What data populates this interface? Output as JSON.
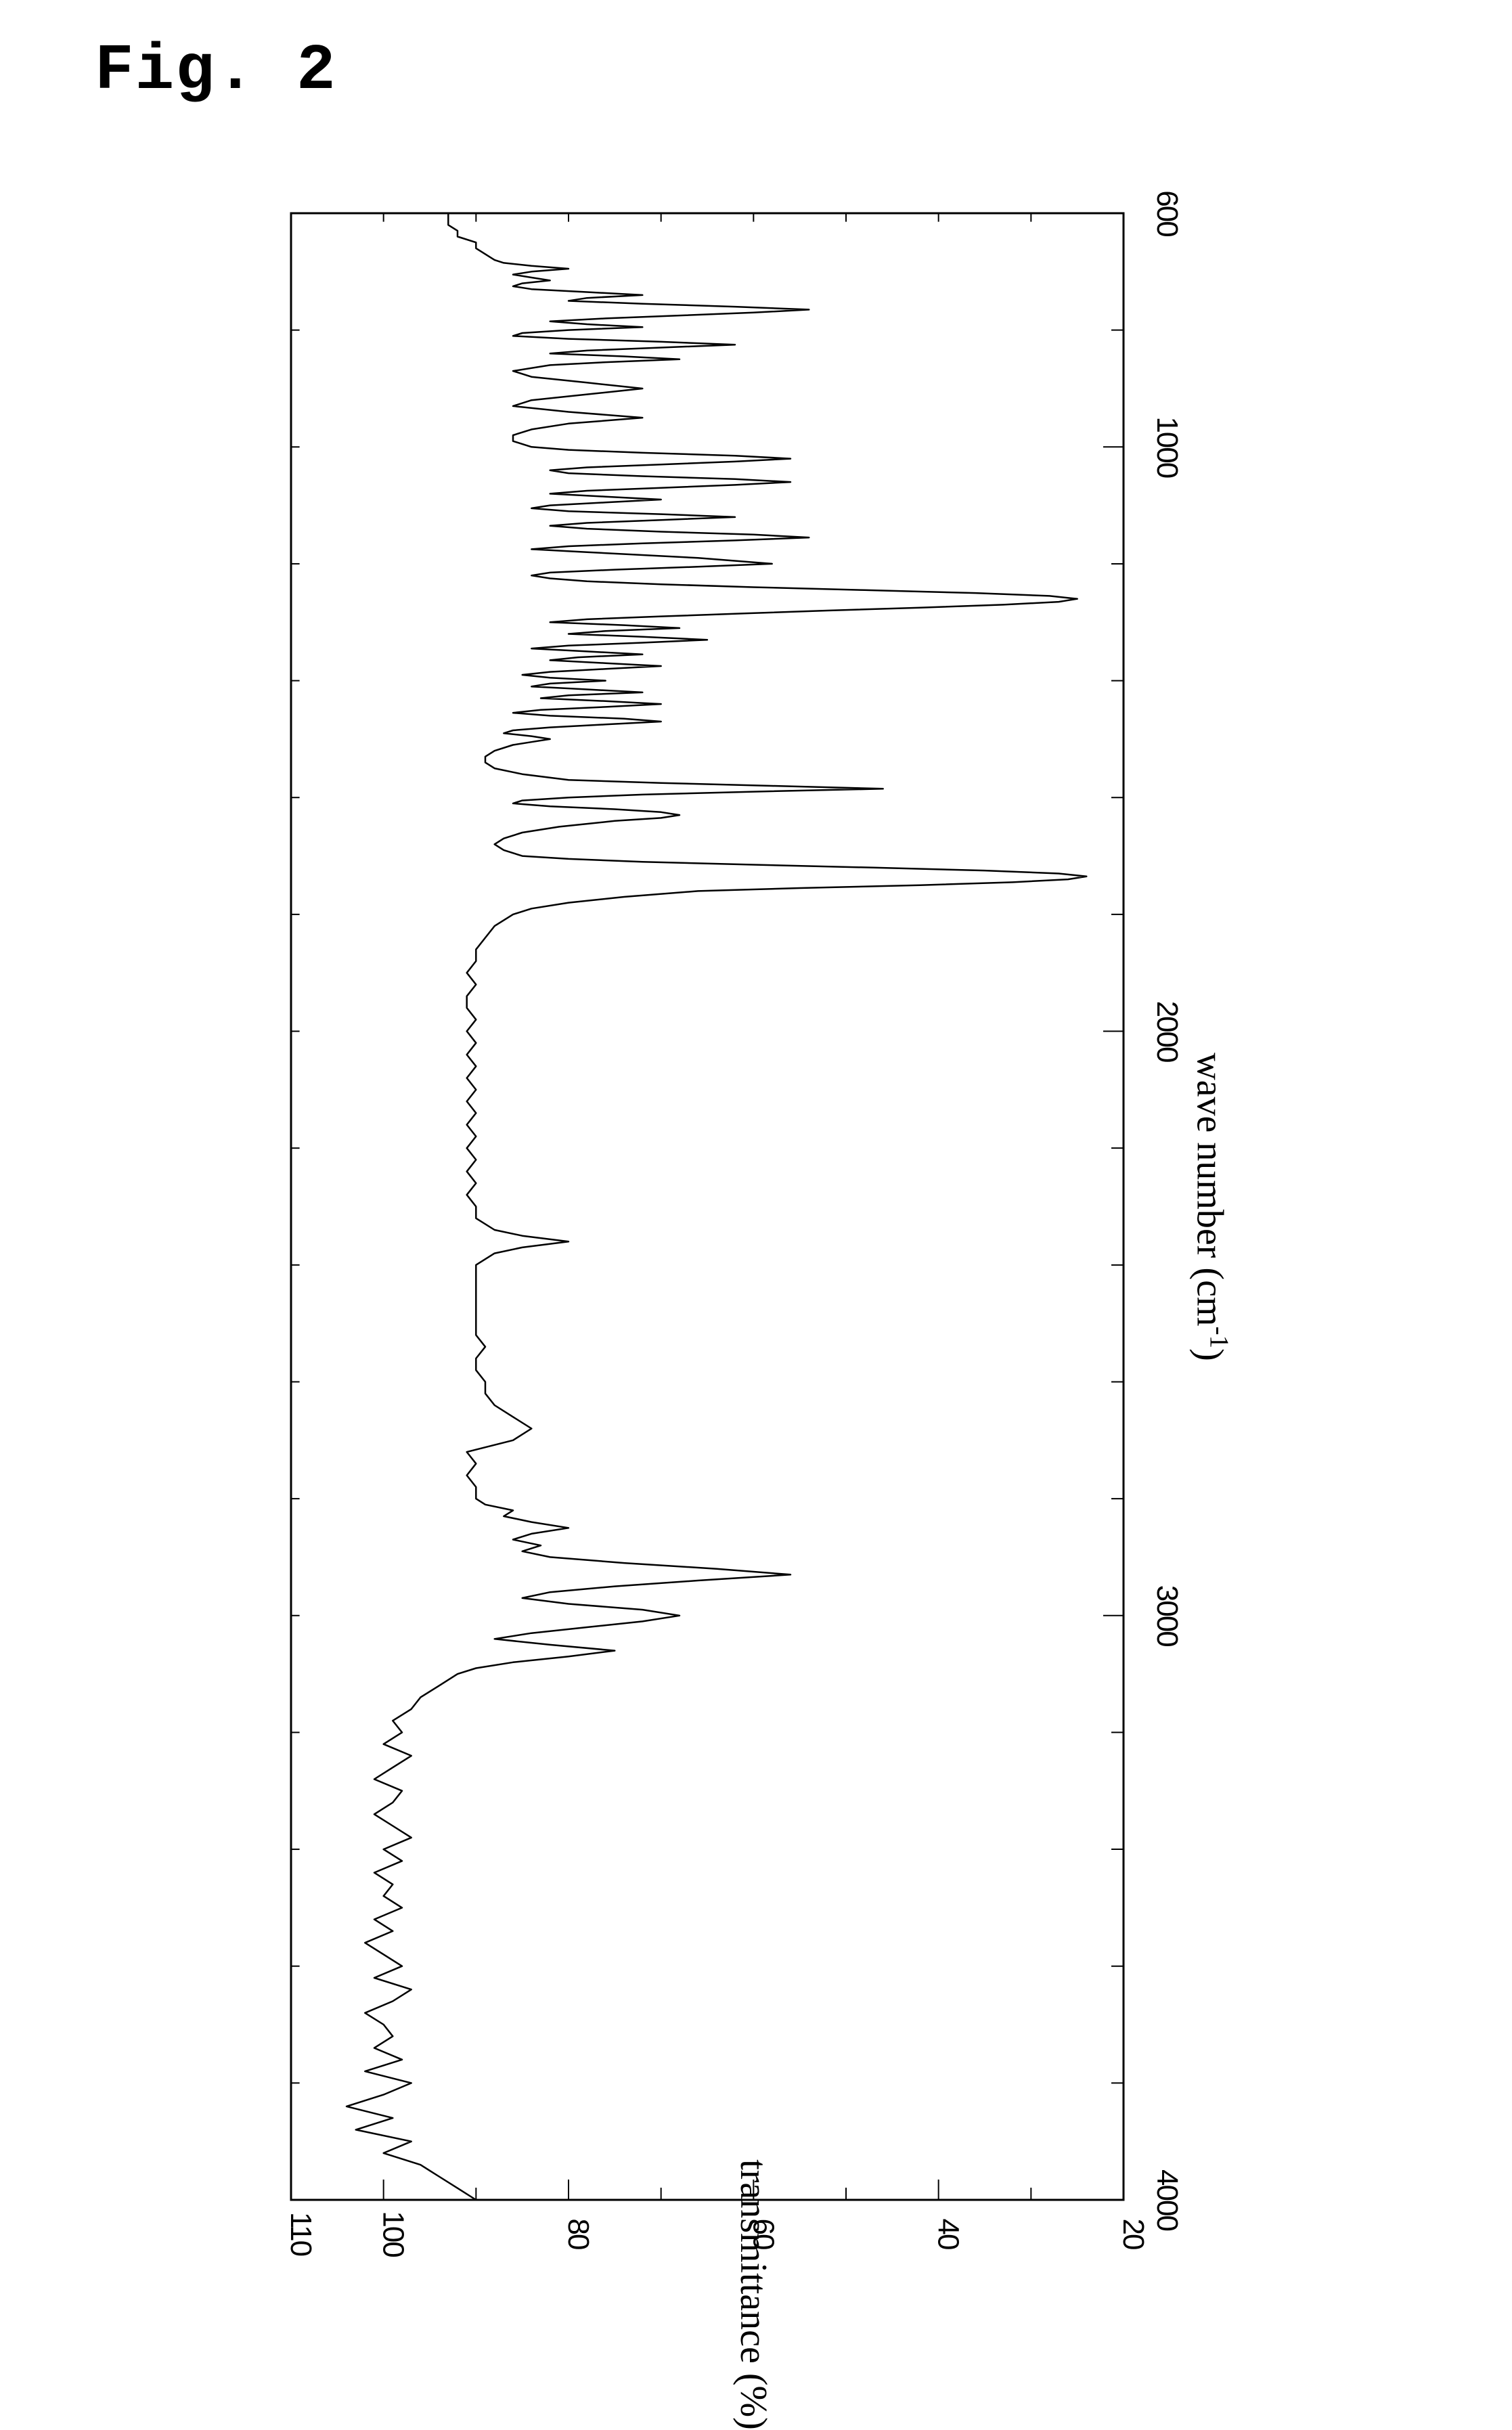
{
  "figure": {
    "title": "Fig.  2",
    "title_font": "Courier New, monospace",
    "title_fontsize": 96,
    "title_weight": "bold"
  },
  "chart": {
    "type": "line",
    "orientation": "rotated-90-cw",
    "background_color": "#ffffff",
    "border_color": "#000000",
    "border_width": 3,
    "line_color": "#000000",
    "line_width": 2.5,
    "xlabel": "wave number (cm",
    "xlabel_super": "-1",
    "xlabel_suffix": ")",
    "xlabel_fontsize": 56,
    "ylabel": "transmittance (%)",
    "ylabel_fontsize": 56,
    "tick_font": "sans-serif",
    "tick_fontsize": 44,
    "tick_stretch": "condensed",
    "x_axis": {
      "min": 4000,
      "max": 600,
      "ticks": [
        4000,
        3000,
        2000,
        1000,
        600
      ],
      "tick_labels": [
        "4000",
        "3000",
        "2000",
        "1000",
        "600"
      ],
      "minor_tick_interval": 200,
      "tick_length_major": 30,
      "tick_length_minor": 18
    },
    "y_axis": {
      "min": 20,
      "max": 110,
      "ticks": [
        20,
        40,
        60,
        80,
        100,
        110
      ],
      "tick_labels": [
        "20",
        "40",
        "60",
        "80",
        "100",
        "110"
      ],
      "minor_tick_interval": 10,
      "tick_length_major": 30,
      "tick_length_minor": 18
    },
    "series": {
      "x": [
        4000,
        3980,
        3960,
        3940,
        3920,
        3900,
        3880,
        3860,
        3840,
        3820,
        3800,
        3780,
        3760,
        3740,
        3720,
        3700,
        3680,
        3660,
        3640,
        3620,
        3600,
        3580,
        3560,
        3540,
        3520,
        3500,
        3480,
        3460,
        3440,
        3420,
        3400,
        3380,
        3360,
        3340,
        3320,
        3300,
        3280,
        3260,
        3240,
        3220,
        3200,
        3180,
        3160,
        3140,
        3120,
        3100,
        3090,
        3080,
        3070,
        3060,
        3050,
        3040,
        3030,
        3020,
        3010,
        3000,
        2990,
        2980,
        2970,
        2960,
        2950,
        2940,
        2930,
        2920,
        2910,
        2900,
        2890,
        2880,
        2870,
        2860,
        2850,
        2840,
        2830,
        2820,
        2810,
        2800,
        2780,
        2760,
        2740,
        2720,
        2700,
        2680,
        2660,
        2640,
        2620,
        2600,
        2580,
        2560,
        2540,
        2520,
        2500,
        2480,
        2460,
        2440,
        2420,
        2400,
        2380,
        2370,
        2360,
        2350,
        2340,
        2320,
        2300,
        2280,
        2260,
        2240,
        2220,
        2200,
        2180,
        2160,
        2140,
        2120,
        2100,
        2080,
        2060,
        2040,
        2020,
        2000,
        1980,
        1960,
        1940,
        1920,
        1900,
        1880,
        1860,
        1840,
        1820,
        1800,
        1790,
        1780,
        1770,
        1760,
        1755,
        1750,
        1745,
        1740,
        1735,
        1730,
        1725,
        1720,
        1715,
        1710,
        1705,
        1700,
        1690,
        1680,
        1670,
        1660,
        1650,
        1640,
        1635,
        1630,
        1625,
        1620,
        1615,
        1610,
        1605,
        1600,
        1595,
        1590,
        1585,
        1580,
        1575,
        1570,
        1560,
        1550,
        1540,
        1530,
        1520,
        1510,
        1505,
        1500,
        1495,
        1490,
        1485,
        1480,
        1475,
        1470,
        1465,
        1460,
        1455,
        1450,
        1445,
        1440,
        1435,
        1430,
        1425,
        1420,
        1415,
        1410,
        1405,
        1400,
        1395,
        1390,
        1385,
        1380,
        1375,
        1370,
        1365,
        1360,
        1355,
        1350,
        1345,
        1340,
        1335,
        1330,
        1325,
        1320,
        1315,
        1310,
        1305,
        1300,
        1295,
        1290,
        1285,
        1280,
        1275,
        1270,
        1265,
        1260,
        1255,
        1250,
        1245,
        1240,
        1235,
        1230,
        1225,
        1220,
        1215,
        1210,
        1205,
        1200,
        1190,
        1180,
        1175,
        1170,
        1165,
        1160,
        1155,
        1150,
        1145,
        1140,
        1135,
        1130,
        1125,
        1120,
        1115,
        1110,
        1105,
        1100,
        1095,
        1090,
        1085,
        1080,
        1075,
        1070,
        1065,
        1060,
        1055,
        1050,
        1045,
        1040,
        1035,
        1030,
        1025,
        1020,
        1015,
        1010,
        1005,
        1000,
        990,
        980,
        970,
        960,
        950,
        940,
        930,
        920,
        910,
        900,
        890,
        880,
        870,
        860,
        855,
        850,
        845,
        840,
        835,
        830,
        825,
        820,
        815,
        810,
        805,
        800,
        795,
        790,
        785,
        780,
        775,
        770,
        765,
        760,
        755,
        750,
        745,
        740,
        735,
        730,
        725,
        720,
        715,
        710,
        705,
        700,
        695,
        690,
        685,
        680,
        670,
        660,
        650,
        640,
        630,
        620,
        610,
        600
      ],
      "y": [
        90,
        92,
        94,
        96,
        100,
        97,
        103,
        99,
        104,
        100,
        97,
        102,
        98,
        101,
        99,
        100,
        102,
        99,
        97,
        101,
        98,
        100,
        102,
        99,
        101,
        98,
        100,
        99,
        101,
        98,
        100,
        97,
        99,
        101,
        99,
        98,
        101,
        99,
        97,
        100,
        98,
        99,
        97,
        96,
        94,
        92,
        90,
        86,
        80,
        75,
        82,
        88,
        84,
        78,
        72,
        68,
        72,
        80,
        85,
        82,
        75,
        66,
        56,
        64,
        74,
        82,
        85,
        83,
        86,
        84,
        80,
        84,
        87,
        86,
        89,
        90,
        90,
        91,
        90,
        91,
        86,
        84,
        86,
        88,
        89,
        89,
        90,
        90,
        89,
        90,
        90,
        90,
        90,
        90,
        90,
        90,
        88,
        85,
        80,
        85,
        88,
        90,
        90,
        91,
        90,
        91,
        90,
        91,
        90,
        91,
        90,
        91,
        90,
        91,
        90,
        91,
        90,
        91,
        90,
        91,
        91,
        90,
        91,
        90,
        90,
        89,
        88,
        86,
        84,
        80,
        74,
        66,
        55,
        42,
        32,
        26,
        24,
        27,
        35,
        47,
        60,
        72,
        80,
        85,
        87,
        88,
        87,
        85,
        81,
        75,
        70,
        68,
        70,
        75,
        82,
        86,
        85,
        80,
        72,
        60,
        46,
        58,
        70,
        80,
        85,
        88,
        89,
        89,
        88,
        86,
        84,
        82,
        84,
        87,
        86,
        82,
        76,
        70,
        74,
        82,
        86,
        83,
        76,
        70,
        76,
        83,
        80,
        72,
        78,
        84,
        82,
        76,
        82,
        85,
        82,
        76,
        70,
        76,
        82,
        79,
        72,
        78,
        84,
        80,
        72,
        65,
        72,
        80,
        76,
        68,
        74,
        82,
        78,
        70,
        61,
        52,
        42,
        33,
        27,
        25,
        28,
        36,
        48,
        60,
        70,
        78,
        82,
        84,
        82,
        75,
        66,
        58,
        66,
        78,
        84,
        80,
        72,
        62,
        54,
        60,
        70,
        78,
        82,
        78,
        70,
        62,
        70,
        80,
        84,
        82,
        76,
        70,
        76,
        82,
        78,
        70,
        62,
        56,
        62,
        72,
        80,
        82,
        78,
        70,
        62,
        56,
        62,
        72,
        80,
        84,
        86,
        86,
        84,
        80,
        72,
        80,
        86,
        84,
        78,
        72,
        78,
        84,
        86,
        82,
        76,
        68,
        74,
        82,
        78,
        70,
        62,
        70,
        80,
        86,
        85,
        80,
        72,
        78,
        82,
        76,
        68,
        60,
        54,
        62,
        72,
        80,
        78,
        72,
        78,
        84,
        86,
        85,
        82,
        84,
        86,
        84,
        80,
        84,
        87,
        88,
        89,
        90,
        90,
        92,
        92,
        93,
        93,
        93
      ]
    }
  }
}
